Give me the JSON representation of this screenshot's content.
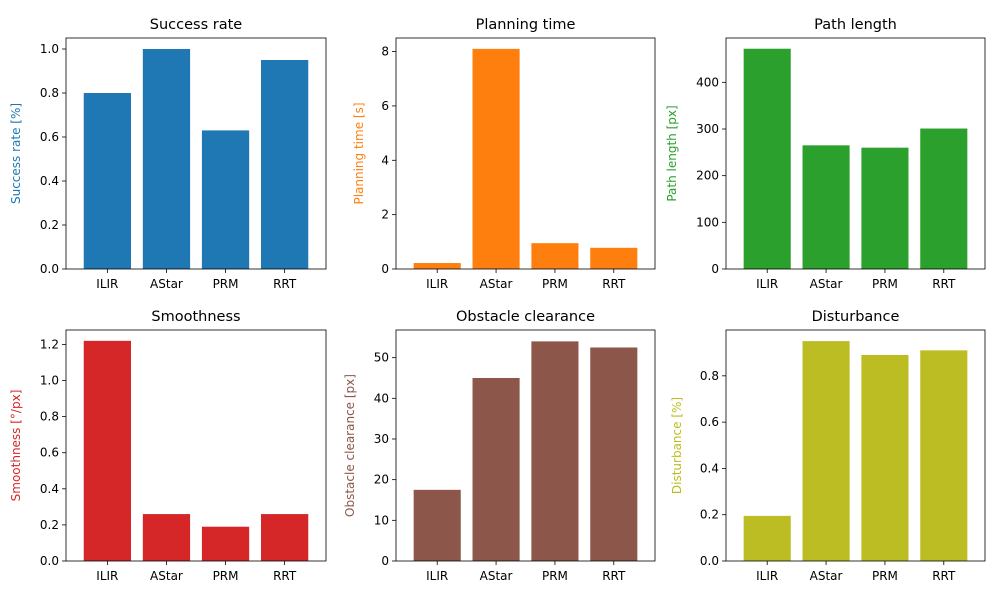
{
  "chart_data": [
    {
      "type": "bar",
      "title": "Success rate",
      "ylabel": "Success rate [%]",
      "color": "#1f77b4",
      "categories": [
        "ILIR",
        "AStar",
        "PRM",
        "RRT"
      ],
      "values": [
        0.8,
        1.0,
        0.63,
        0.95
      ],
      "ylim": [
        0,
        1.05
      ],
      "yticks": [
        0.0,
        0.2,
        0.4,
        0.6,
        0.8,
        1.0
      ],
      "ytick_labels": [
        "0.0",
        "0.2",
        "0.4",
        "0.6",
        "0.8",
        "1.0"
      ]
    },
    {
      "type": "bar",
      "title": "Planning time",
      "ylabel": "Planning time [s]",
      "color": "#ff7f0e",
      "categories": [
        "ILIR",
        "AStar",
        "PRM",
        "RRT"
      ],
      "values": [
        0.22,
        8.1,
        0.95,
        0.78
      ],
      "ylim": [
        0,
        8.5
      ],
      "yticks": [
        0,
        2,
        4,
        6,
        8
      ],
      "ytick_labels": [
        "0",
        "2",
        "4",
        "6",
        "8"
      ]
    },
    {
      "type": "bar",
      "title": "Path length",
      "ylabel": "Path length [px]",
      "color": "#2ca02c",
      "categories": [
        "ILIR",
        "AStar",
        "PRM",
        "RRT"
      ],
      "values": [
        472,
        265,
        260,
        301
      ],
      "ylim": [
        0,
        495
      ],
      "yticks": [
        0,
        100,
        200,
        300,
        400
      ],
      "ytick_labels": [
        "0",
        "100",
        "200",
        "300",
        "400"
      ]
    },
    {
      "type": "bar",
      "title": "Smoothness",
      "ylabel": "Smoothness [°/px]",
      "color": "#d62728",
      "categories": [
        "ILIR",
        "AStar",
        "PRM",
        "RRT"
      ],
      "values": [
        1.22,
        0.26,
        0.19,
        0.26
      ],
      "ylim": [
        0,
        1.28
      ],
      "yticks": [
        0.0,
        0.2,
        0.4,
        0.6,
        0.8,
        1.0,
        1.2
      ],
      "ytick_labels": [
        "0.0",
        "0.2",
        "0.4",
        "0.6",
        "0.8",
        "1.0",
        "1.2"
      ]
    },
    {
      "type": "bar",
      "title": "Obstacle clearance",
      "ylabel": "Obstacle clearance [px]",
      "color": "#8c564b",
      "categories": [
        "ILIR",
        "AStar",
        "PRM",
        "RRT"
      ],
      "values": [
        17.5,
        45,
        54,
        52.5
      ],
      "ylim": [
        0,
        56.8
      ],
      "yticks": [
        0,
        10,
        20,
        30,
        40,
        50
      ],
      "ytick_labels": [
        "0",
        "10",
        "20",
        "30",
        "40",
        "50"
      ]
    },
    {
      "type": "bar",
      "title": "Disturbance",
      "ylabel": "Disturbance [%]",
      "color": "#bcbd22",
      "categories": [
        "ILIR",
        "AStar",
        "PRM",
        "RRT"
      ],
      "values": [
        0.195,
        0.95,
        0.89,
        0.91
      ],
      "ylim": [
        0,
        0.998
      ],
      "yticks": [
        0.0,
        0.2,
        0.4,
        0.6,
        0.8
      ],
      "ytick_labels": [
        "0.0",
        "0.2",
        "0.4",
        "0.6",
        "0.8"
      ]
    }
  ]
}
